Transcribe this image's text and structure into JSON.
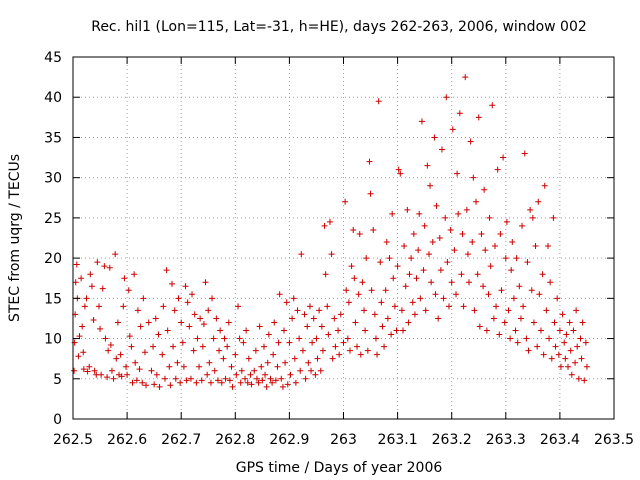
{
  "chart_data": {
    "type": "scatter",
    "title": "Rec. hil1 (Lon=115, Lat=-31, h=HE), days 262-263, 2006, window 002",
    "xlabel": "GPS time / Days of year 2006",
    "ylabel": "STEC from uqrg / TECUs",
    "xlim": [
      262.5,
      263.5
    ],
    "ylim": [
      0,
      45
    ],
    "grid": true,
    "marker": "plus",
    "color": "#cc0000",
    "x_ticks": [
      262.5,
      262.6,
      262.7,
      262.8,
      262.9,
      263,
      263.1,
      263.2,
      263.3,
      263.4,
      263.5
    ],
    "x_tick_labels": [
      "262.5",
      "262.6",
      "262.7",
      "262.8",
      "262.9",
      "263",
      "263.1",
      "263.2",
      "263.3",
      "263.4",
      "263.5"
    ],
    "y_ticks": [
      0,
      5,
      10,
      15,
      20,
      25,
      30,
      35,
      40,
      45
    ],
    "y_tick_labels": [
      "0",
      "5",
      "10",
      "15",
      "20",
      "25",
      "30",
      "35",
      "40",
      "45"
    ],
    "points": [
      [
        262.502,
        6.0
      ],
      [
        262.503,
        9.5
      ],
      [
        262.504,
        13.0
      ],
      [
        262.505,
        17.0
      ],
      [
        262.507,
        19.2
      ],
      [
        262.508,
        15.0
      ],
      [
        262.51,
        7.8
      ],
      [
        262.512,
        10.3
      ],
      [
        262.515,
        17.5
      ],
      [
        262.517,
        11.5
      ],
      [
        262.519,
        8.3
      ],
      [
        262.52,
        6.2
      ],
      [
        262.522,
        14.0
      ],
      [
        262.525,
        15.0
      ],
      [
        262.527,
        5.9
      ],
      [
        262.53,
        6.5
      ],
      [
        262.532,
        18.0
      ],
      [
        262.535,
        16.5
      ],
      [
        262.538,
        12.3
      ],
      [
        262.54,
        6.0
      ],
      [
        262.543,
        5.5
      ],
      [
        262.545,
        19.5
      ],
      [
        262.548,
        14.0
      ],
      [
        262.55,
        11.2
      ],
      [
        262.552,
        5.5
      ],
      [
        262.555,
        16.2
      ],
      [
        262.558,
        19.0
      ],
      [
        262.56,
        10.0
      ],
      [
        262.563,
        5.2
      ],
      [
        262.565,
        8.5
      ],
      [
        262.568,
        18.8
      ],
      [
        262.57,
        9.2
      ],
      [
        262.572,
        6.0
      ],
      [
        262.575,
        5.0
      ],
      [
        262.578,
        20.5
      ],
      [
        262.58,
        7.5
      ],
      [
        262.583,
        12.0
      ],
      [
        262.585,
        5.5
      ],
      [
        262.588,
        8.0
      ],
      [
        262.59,
        5.3
      ],
      [
        262.593,
        14.0
      ],
      [
        262.595,
        17.5
      ],
      [
        262.598,
        6.5
      ],
      [
        262.6,
        5.5
      ],
      [
        262.603,
        16.0
      ],
      [
        262.605,
        10.3
      ],
      [
        262.608,
        9.0
      ],
      [
        262.61,
        4.5
      ],
      [
        262.613,
        18.0
      ],
      [
        262.615,
        7.0
      ],
      [
        262.618,
        4.8
      ],
      [
        262.62,
        13.5
      ],
      [
        262.623,
        6.2
      ],
      [
        262.625,
        11.5
      ],
      [
        262.628,
        4.5
      ],
      [
        262.63,
        15.0
      ],
      [
        262.633,
        8.3
      ],
      [
        262.635,
        4.2
      ],
      [
        262.64,
        12.0
      ],
      [
        262.645,
        6.0
      ],
      [
        262.648,
        9.0
      ],
      [
        262.65,
        4.3
      ],
      [
        262.653,
        12.5
      ],
      [
        262.655,
        5.5
      ],
      [
        262.658,
        10.5
      ],
      [
        262.66,
        4.0
      ],
      [
        262.665,
        8.0
      ],
      [
        262.667,
        14.0
      ],
      [
        262.67,
        5.0
      ],
      [
        262.673,
        18.5
      ],
      [
        262.675,
        11.0
      ],
      [
        262.678,
        6.5
      ],
      [
        262.68,
        4.2
      ],
      [
        262.683,
        16.8
      ],
      [
        262.685,
        9.0
      ],
      [
        262.688,
        13.5
      ],
      [
        262.69,
        5.0
      ],
      [
        262.693,
        7.0
      ],
      [
        262.695,
        15.0
      ],
      [
        262.698,
        4.5
      ],
      [
        262.7,
        12.0
      ],
      [
        262.703,
        9.5
      ],
      [
        262.705,
        6.5
      ],
      [
        262.708,
        16.5
      ],
      [
        262.71,
        4.8
      ],
      [
        262.712,
        14.5
      ],
      [
        262.715,
        11.5
      ],
      [
        262.718,
        5.0
      ],
      [
        262.72,
        15.5
      ],
      [
        262.723,
        8.5
      ],
      [
        262.725,
        13.0
      ],
      [
        262.728,
        4.5
      ],
      [
        262.73,
        10.0
      ],
      [
        262.733,
        6.5
      ],
      [
        262.735,
        12.5
      ],
      [
        262.738,
        4.8
      ],
      [
        262.74,
        9.0
      ],
      [
        262.742,
        11.8
      ],
      [
        262.745,
        17.0
      ],
      [
        262.748,
        5.5
      ],
      [
        262.75,
        13.5
      ],
      [
        262.752,
        7.0
      ],
      [
        262.755,
        4.5
      ],
      [
        262.757,
        15.0
      ],
      [
        262.76,
        10.0
      ],
      [
        262.762,
        6.0
      ],
      [
        262.765,
        12.5
      ],
      [
        262.768,
        4.8
      ],
      [
        262.77,
        8.5
      ],
      [
        262.772,
        11.0
      ],
      [
        262.775,
        4.5
      ],
      [
        262.778,
        7.5
      ],
      [
        262.78,
        10.0
      ],
      [
        262.782,
        5.0
      ],
      [
        262.785,
        9.0
      ],
      [
        262.788,
        12.0
      ],
      [
        262.79,
        4.8
      ],
      [
        262.793,
        6.5
      ],
      [
        262.795,
        4.0
      ],
      [
        262.8,
        8.0
      ],
      [
        262.802,
        5.5
      ],
      [
        262.805,
        14.0
      ],
      [
        262.808,
        10.0
      ],
      [
        262.81,
        4.5
      ],
      [
        262.812,
        6.0
      ],
      [
        262.815,
        9.5
      ],
      [
        262.818,
        5.0
      ],
      [
        262.82,
        11.0
      ],
      [
        262.823,
        4.5
      ],
      [
        262.825,
        7.5
      ],
      [
        262.828,
        5.5
      ],
      [
        262.83,
        4.3
      ],
      [
        262.835,
        6.0
      ],
      [
        262.838,
        8.5
      ],
      [
        262.84,
        5.0
      ],
      [
        262.843,
        4.5
      ],
      [
        262.845,
        11.5
      ],
      [
        262.848,
        6.5
      ],
      [
        262.85,
        4.8
      ],
      [
        262.853,
        9.0
      ],
      [
        262.855,
        5.5
      ],
      [
        262.858,
        4.0
      ],
      [
        262.86,
        7.0
      ],
      [
        262.862,
        10.5
      ],
      [
        262.865,
        5.0
      ],
      [
        262.868,
        4.5
      ],
      [
        262.87,
        8.0
      ],
      [
        262.872,
        12.0
      ],
      [
        262.875,
        4.8
      ],
      [
        262.878,
        6.5
      ],
      [
        262.88,
        9.5
      ],
      [
        262.882,
        15.5
      ],
      [
        262.885,
        5.0
      ],
      [
        262.888,
        4.0
      ],
      [
        262.89,
        11.0
      ],
      [
        262.892,
        7.0
      ],
      [
        262.895,
        14.5
      ],
      [
        262.897,
        4.3
      ],
      [
        262.9,
        9.5
      ],
      [
        262.902,
        5.5
      ],
      [
        262.905,
        12.5
      ],
      [
        262.908,
        15.0
      ],
      [
        262.91,
        7.5
      ],
      [
        262.912,
        4.5
      ],
      [
        262.915,
        13.5
      ],
      [
        262.918,
        10.0
      ],
      [
        262.92,
        6.0
      ],
      [
        262.922,
        20.5
      ],
      [
        262.925,
        8.5
      ],
      [
        262.928,
        13.0
      ],
      [
        262.93,
        5.0
      ],
      [
        262.933,
        11.5
      ],
      [
        262.935,
        7.0
      ],
      [
        262.938,
        14.0
      ],
      [
        262.94,
        6.0
      ],
      [
        262.942,
        9.5
      ],
      [
        262.945,
        12.5
      ],
      [
        262.948,
        5.5
      ],
      [
        262.95,
        10.0
      ],
      [
        262.952,
        7.5
      ],
      [
        262.955,
        13.5
      ],
      [
        262.958,
        6.0
      ],
      [
        262.96,
        11.5
      ],
      [
        262.962,
        8.5
      ],
      [
        262.965,
        24.0
      ],
      [
        262.967,
        18.0
      ],
      [
        262.97,
        14.0
      ],
      [
        262.972,
        10.5
      ],
      [
        262.975,
        24.5
      ],
      [
        262.978,
        20.5
      ],
      [
        262.98,
        7.5
      ],
      [
        262.983,
        12.5
      ],
      [
        262.985,
        9.0
      ],
      [
        262.99,
        11.0
      ],
      [
        262.992,
        8.0
      ],
      [
        262.995,
        13.0
      ],
      [
        263.0,
        9.5
      ],
      [
        263.003,
        27.0
      ],
      [
        263.005,
        16.0
      ],
      [
        263.008,
        10.0
      ],
      [
        263.01,
        14.5
      ],
      [
        263.012,
        8.5
      ],
      [
        263.015,
        19.0
      ],
      [
        263.018,
        23.5
      ],
      [
        263.02,
        17.5
      ],
      [
        263.022,
        12.0
      ],
      [
        263.025,
        9.0
      ],
      [
        263.028,
        15.5
      ],
      [
        263.03,
        23.0
      ],
      [
        263.032,
        8.0
      ],
      [
        263.035,
        17.0
      ],
      [
        263.038,
        13.5
      ],
      [
        263.04,
        11.0
      ],
      [
        263.042,
        20.0
      ],
      [
        263.045,
        8.5
      ],
      [
        263.048,
        32.0
      ],
      [
        263.05,
        28.0
      ],
      [
        263.052,
        16.0
      ],
      [
        263.055,
        23.5
      ],
      [
        263.058,
        13.0
      ],
      [
        263.06,
        10.0
      ],
      [
        263.062,
        8.0
      ],
      [
        263.065,
        39.5
      ],
      [
        263.068,
        19.5
      ],
      [
        263.07,
        14.5
      ],
      [
        263.072,
        11.5
      ],
      [
        263.075,
        9.0
      ],
      [
        263.078,
        16.0
      ],
      [
        263.08,
        22.0
      ],
      [
        263.082,
        12.5
      ],
      [
        263.085,
        20.0
      ],
      [
        263.088,
        10.5
      ],
      [
        263.09,
        25.5
      ],
      [
        263.092,
        17.5
      ],
      [
        263.095,
        14.0
      ],
      [
        263.098,
        11.0
      ],
      [
        263.1,
        19.0
      ],
      [
        263.102,
        31.0
      ],
      [
        263.105,
        30.5
      ],
      [
        263.108,
        13.5
      ],
      [
        263.11,
        11.0
      ],
      [
        263.112,
        21.5
      ],
      [
        263.115,
        16.5
      ],
      [
        263.118,
        26.0
      ],
      [
        263.12,
        12.0
      ],
      [
        263.122,
        18.0
      ],
      [
        263.125,
        20.0
      ],
      [
        263.128,
        14.5
      ],
      [
        263.13,
        23.0
      ],
      [
        263.132,
        13.0
      ],
      [
        263.135,
        17.5
      ],
      [
        263.138,
        21.0
      ],
      [
        263.14,
        25.5
      ],
      [
        263.142,
        15.0
      ],
      [
        263.145,
        37.0
      ],
      [
        263.148,
        18.5
      ],
      [
        263.15,
        24.0
      ],
      [
        263.152,
        13.5
      ],
      [
        263.155,
        31.5
      ],
      [
        263.158,
        20.5
      ],
      [
        263.16,
        29.0
      ],
      [
        263.162,
        17.0
      ],
      [
        263.165,
        22.0
      ],
      [
        263.168,
        35.0
      ],
      [
        263.17,
        15.5
      ],
      [
        263.172,
        26.5
      ],
      [
        263.175,
        12.5
      ],
      [
        263.178,
        22.5
      ],
      [
        263.18,
        18.5
      ],
      [
        263.182,
        33.5
      ],
      [
        263.185,
        15.0
      ],
      [
        263.188,
        25.0
      ],
      [
        263.19,
        40.0
      ],
      [
        263.192,
        19.5
      ],
      [
        263.195,
        14.0
      ],
      [
        263.198,
        23.5
      ],
      [
        263.2,
        17.0
      ],
      [
        263.202,
        36.0
      ],
      [
        263.205,
        21.0
      ],
      [
        263.208,
        15.5
      ],
      [
        263.21,
        30.5
      ],
      [
        263.212,
        25.5
      ],
      [
        263.215,
        38.0
      ],
      [
        263.218,
        18.0
      ],
      [
        263.22,
        23.0
      ],
      [
        263.222,
        14.0
      ],
      [
        263.225,
        42.5
      ],
      [
        263.228,
        26.0
      ],
      [
        263.23,
        20.5
      ],
      [
        263.232,
        17.0
      ],
      [
        263.235,
        34.5
      ],
      [
        263.238,
        22.0
      ],
      [
        263.24,
        30.0
      ],
      [
        263.242,
        13.5
      ],
      [
        263.245,
        27.0
      ],
      [
        263.248,
        18.0
      ],
      [
        263.25,
        37.5
      ],
      [
        263.252,
        11.5
      ],
      [
        263.255,
        23.0
      ],
      [
        263.258,
        16.5
      ],
      [
        263.26,
        28.5
      ],
      [
        263.262,
        21.0
      ],
      [
        263.265,
        11.0
      ],
      [
        263.268,
        15.5
      ],
      [
        263.27,
        25.0
      ],
      [
        263.272,
        19.0
      ],
      [
        263.275,
        39.0
      ],
      [
        263.278,
        12.5
      ],
      [
        263.28,
        21.5
      ],
      [
        263.282,
        14.0
      ],
      [
        263.285,
        31.0
      ],
      [
        263.288,
        10.5
      ],
      [
        263.29,
        23.0
      ],
      [
        263.292,
        16.0
      ],
      [
        263.295,
        32.5
      ],
      [
        263.298,
        12.0
      ],
      [
        263.3,
        20.0
      ],
      [
        263.302,
        24.5
      ],
      [
        263.305,
        13.5
      ],
      [
        263.308,
        10.0
      ],
      [
        263.31,
        18.5
      ],
      [
        263.312,
        22.0
      ],
      [
        263.315,
        15.0
      ],
      [
        263.318,
        11.0
      ],
      [
        263.32,
        20.0
      ],
      [
        263.322,
        9.5
      ],
      [
        263.325,
        16.5
      ],
      [
        263.328,
        12.5
      ],
      [
        263.33,
        24.0
      ],
      [
        263.332,
        14.0
      ],
      [
        263.335,
        33.0
      ],
      [
        263.338,
        10.0
      ],
      [
        263.34,
        19.5
      ],
      [
        263.342,
        8.5
      ],
      [
        263.345,
        26.0
      ],
      [
        263.348,
        16.0
      ],
      [
        263.35,
        25.0
      ],
      [
        263.352,
        12.0
      ],
      [
        263.355,
        21.5
      ],
      [
        263.358,
        9.0
      ],
      [
        263.36,
        27.0
      ],
      [
        263.362,
        15.5
      ],
      [
        263.365,
        11.0
      ],
      [
        263.368,
        18.0
      ],
      [
        263.37,
        8.0
      ],
      [
        263.372,
        29.0
      ],
      [
        263.375,
        13.5
      ],
      [
        263.378,
        21.5
      ],
      [
        263.38,
        10.0
      ],
      [
        263.382,
        17.0
      ],
      [
        263.385,
        7.5
      ],
      [
        263.388,
        25.0
      ],
      [
        263.39,
        12.0
      ],
      [
        263.392,
        9.0
      ],
      [
        263.395,
        15.0
      ],
      [
        263.398,
        8.0
      ],
      [
        263.4,
        11.0
      ],
      [
        263.402,
        6.5
      ],
      [
        263.405,
        13.0
      ],
      [
        263.408,
        9.5
      ],
      [
        263.41,
        7.5
      ],
      [
        263.412,
        10.5
      ],
      [
        263.415,
        6.5
      ],
      [
        263.418,
        12.0
      ],
      [
        263.42,
        8.5
      ],
      [
        263.422,
        5.5
      ],
      [
        263.425,
        11.0
      ],
      [
        263.428,
        7.0
      ],
      [
        263.43,
        13.5
      ],
      [
        263.432,
        9.0
      ],
      [
        263.435,
        5.0
      ],
      [
        263.438,
        10.0
      ],
      [
        263.44,
        7.5
      ],
      [
        263.442,
        12.0
      ],
      [
        263.445,
        4.8
      ],
      [
        263.448,
        9.5
      ],
      [
        263.45,
        6.5
      ]
    ]
  }
}
